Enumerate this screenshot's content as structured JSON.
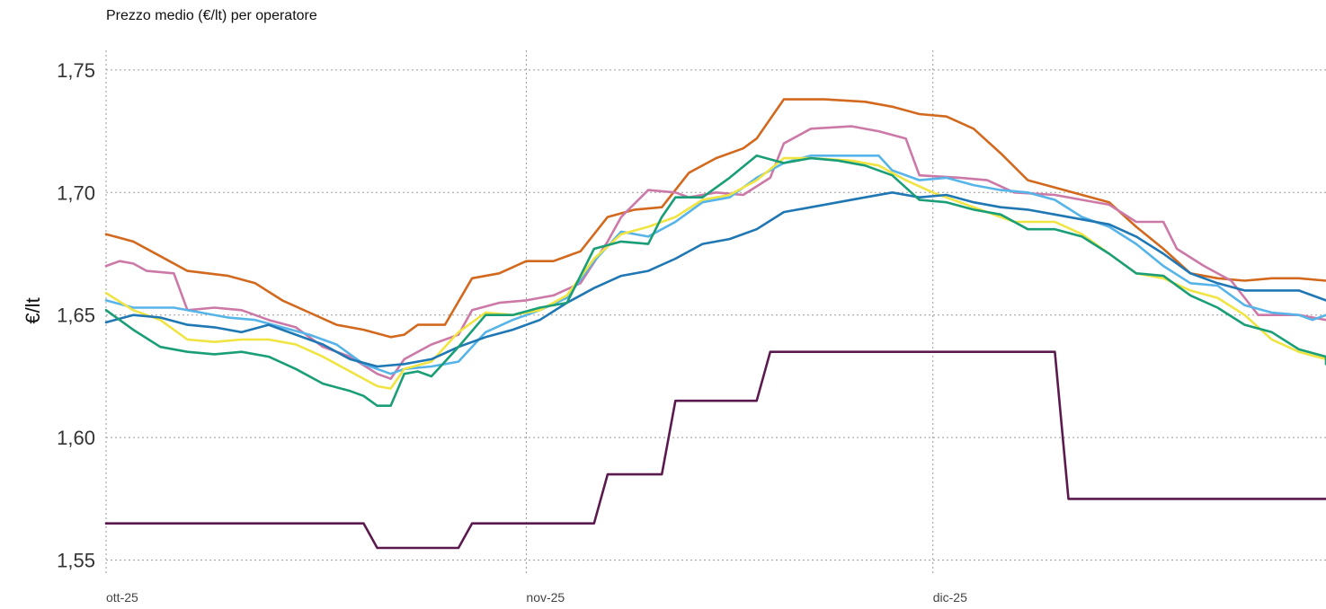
{
  "chart_data": {
    "type": "line",
    "title": "Prezzo medio (€/lt) per operatore",
    "xlabel": "",
    "ylabel": "€/lt",
    "x_ticks": [
      {
        "label": "ott-25",
        "day": 0
      },
      {
        "label": "nov-25",
        "day": 31
      },
      {
        "label": "dic-25",
        "day": 61
      }
    ],
    "xlim": [
      0,
      90
    ],
    "ylim": [
      1.544,
      1.758
    ],
    "y_ticks": [
      {
        "label": "1,55",
        "value": 1.55
      },
      {
        "label": "1,60",
        "value": 1.6
      },
      {
        "label": "1,65",
        "value": 1.65
      },
      {
        "label": "1,70",
        "value": 1.7
      },
      {
        "label": "1,75",
        "value": 1.75
      }
    ],
    "grid": true,
    "legend": "none",
    "series": [
      {
        "color": "#d2691e",
        "points": [
          [
            0,
            1.683
          ],
          [
            2,
            1.68
          ],
          [
            4,
            1.674
          ],
          [
            6,
            1.668
          ],
          [
            9,
            1.666
          ],
          [
            11,
            1.663
          ],
          [
            13,
            1.656
          ],
          [
            15,
            1.651
          ],
          [
            17,
            1.646
          ],
          [
            19,
            1.644
          ],
          [
            21,
            1.641
          ],
          [
            22,
            1.642
          ],
          [
            23,
            1.646
          ],
          [
            25,
            1.646
          ],
          [
            27,
            1.665
          ],
          [
            29,
            1.667
          ],
          [
            31,
            1.672
          ],
          [
            33,
            1.672
          ],
          [
            35,
            1.676
          ],
          [
            37,
            1.69
          ],
          [
            39,
            1.693
          ],
          [
            41,
            1.694
          ],
          [
            43,
            1.708
          ],
          [
            45,
            1.714
          ],
          [
            47,
            1.718
          ],
          [
            48,
            1.722
          ],
          [
            50,
            1.738
          ],
          [
            53,
            1.738
          ],
          [
            56,
            1.737
          ],
          [
            58,
            1.735
          ],
          [
            60,
            1.732
          ],
          [
            62,
            1.731
          ],
          [
            64,
            1.726
          ],
          [
            66,
            1.716
          ],
          [
            68,
            1.705
          ],
          [
            70,
            1.702
          ],
          [
            72,
            1.699
          ],
          [
            74,
            1.696
          ],
          [
            76,
            1.686
          ],
          [
            78,
            1.677
          ],
          [
            80,
            1.667
          ],
          [
            82,
            1.665
          ],
          [
            84,
            1.664
          ],
          [
            86,
            1.665
          ],
          [
            88,
            1.665
          ],
          [
            90,
            1.664
          ]
        ]
      },
      {
        "color": "#cc79a7",
        "points": [
          [
            0,
            1.67
          ],
          [
            1,
            1.672
          ],
          [
            2,
            1.671
          ],
          [
            3,
            1.668
          ],
          [
            5,
            1.667
          ],
          [
            6,
            1.652
          ],
          [
            8,
            1.653
          ],
          [
            10,
            1.652
          ],
          [
            12,
            1.648
          ],
          [
            14,
            1.645
          ],
          [
            16,
            1.637
          ],
          [
            18,
            1.633
          ],
          [
            20,
            1.626
          ],
          [
            21,
            1.624
          ],
          [
            22,
            1.632
          ],
          [
            24,
            1.638
          ],
          [
            26,
            1.642
          ],
          [
            27,
            1.652
          ],
          [
            29,
            1.655
          ],
          [
            31,
            1.656
          ],
          [
            33,
            1.658
          ],
          [
            35,
            1.663
          ],
          [
            37,
            1.68
          ],
          [
            38,
            1.69
          ],
          [
            40,
            1.701
          ],
          [
            42,
            1.7
          ],
          [
            43,
            1.698
          ],
          [
            45,
            1.7
          ],
          [
            47,
            1.699
          ],
          [
            49,
            1.706
          ],
          [
            50,
            1.72
          ],
          [
            52,
            1.726
          ],
          [
            55,
            1.727
          ],
          [
            57,
            1.725
          ],
          [
            59,
            1.722
          ],
          [
            60,
            1.707
          ],
          [
            63,
            1.706
          ],
          [
            65,
            1.705
          ],
          [
            67,
            1.7
          ],
          [
            70,
            1.699
          ],
          [
            72,
            1.697
          ],
          [
            74,
            1.695
          ],
          [
            76,
            1.688
          ],
          [
            78,
            1.688
          ],
          [
            79,
            1.677
          ],
          [
            81,
            1.67
          ],
          [
            83,
            1.664
          ],
          [
            85,
            1.65
          ],
          [
            88,
            1.65
          ],
          [
            90,
            1.648
          ]
        ]
      },
      {
        "color": "#56b4e9",
        "points": [
          [
            0,
            1.656
          ],
          [
            2,
            1.653
          ],
          [
            5,
            1.653
          ],
          [
            7,
            1.651
          ],
          [
            9,
            1.649
          ],
          [
            11,
            1.648
          ],
          [
            13,
            1.645
          ],
          [
            15,
            1.642
          ],
          [
            17,
            1.638
          ],
          [
            19,
            1.63
          ],
          [
            21,
            1.626
          ],
          [
            22,
            1.628
          ],
          [
            24,
            1.629
          ],
          [
            26,
            1.631
          ],
          [
            28,
            1.643
          ],
          [
            30,
            1.648
          ],
          [
            32,
            1.652
          ],
          [
            34,
            1.657
          ],
          [
            36,
            1.672
          ],
          [
            38,
            1.684
          ],
          [
            40,
            1.682
          ],
          [
            42,
            1.688
          ],
          [
            44,
            1.696
          ],
          [
            46,
            1.698
          ],
          [
            48,
            1.706
          ],
          [
            50,
            1.712
          ],
          [
            52,
            1.715
          ],
          [
            55,
            1.715
          ],
          [
            57,
            1.715
          ],
          [
            58,
            1.709
          ],
          [
            60,
            1.705
          ],
          [
            62,
            1.706
          ],
          [
            64,
            1.703
          ],
          [
            66,
            1.701
          ],
          [
            68,
            1.7
          ],
          [
            70,
            1.697
          ],
          [
            72,
            1.69
          ],
          [
            74,
            1.686
          ],
          [
            76,
            1.679
          ],
          [
            78,
            1.67
          ],
          [
            80,
            1.663
          ],
          [
            82,
            1.662
          ],
          [
            84,
            1.654
          ],
          [
            86,
            1.651
          ],
          [
            88,
            1.65
          ],
          [
            89,
            1.648
          ],
          [
            90,
            1.65
          ]
        ]
      },
      {
        "color": "#f0e442",
        "points": [
          [
            0,
            1.659
          ],
          [
            2,
            1.652
          ],
          [
            4,
            1.648
          ],
          [
            6,
            1.64
          ],
          [
            8,
            1.639
          ],
          [
            10,
            1.64
          ],
          [
            12,
            1.64
          ],
          [
            14,
            1.638
          ],
          [
            16,
            1.633
          ],
          [
            18,
            1.627
          ],
          [
            20,
            1.621
          ],
          [
            21,
            1.62
          ],
          [
            22,
            1.628
          ],
          [
            24,
            1.631
          ],
          [
            26,
            1.643
          ],
          [
            28,
            1.651
          ],
          [
            30,
            1.65
          ],
          [
            32,
            1.652
          ],
          [
            34,
            1.658
          ],
          [
            36,
            1.673
          ],
          [
            38,
            1.683
          ],
          [
            40,
            1.686
          ],
          [
            42,
            1.69
          ],
          [
            44,
            1.697
          ],
          [
            46,
            1.699
          ],
          [
            48,
            1.705
          ],
          [
            50,
            1.714
          ],
          [
            52,
            1.714
          ],
          [
            55,
            1.713
          ],
          [
            57,
            1.711
          ],
          [
            59,
            1.705
          ],
          [
            61,
            1.7
          ],
          [
            63,
            1.696
          ],
          [
            65,
            1.692
          ],
          [
            67,
            1.688
          ],
          [
            70,
            1.688
          ],
          [
            72,
            1.683
          ],
          [
            74,
            1.675
          ],
          [
            76,
            1.667
          ],
          [
            78,
            1.665
          ],
          [
            80,
            1.66
          ],
          [
            82,
            1.657
          ],
          [
            84,
            1.65
          ],
          [
            86,
            1.64
          ],
          [
            88,
            1.635
          ],
          [
            90,
            1.632
          ]
        ]
      },
      {
        "color": "#1f77b4",
        "points": [
          [
            0,
            1.647
          ],
          [
            2,
            1.65
          ],
          [
            4,
            1.649
          ],
          [
            6,
            1.646
          ],
          [
            8,
            1.645
          ],
          [
            10,
            1.643
          ],
          [
            12,
            1.646
          ],
          [
            14,
            1.642
          ],
          [
            16,
            1.638
          ],
          [
            18,
            1.632
          ],
          [
            20,
            1.629
          ],
          [
            22,
            1.63
          ],
          [
            24,
            1.632
          ],
          [
            26,
            1.637
          ],
          [
            28,
            1.641
          ],
          [
            30,
            1.644
          ],
          [
            32,
            1.648
          ],
          [
            34,
            1.655
          ],
          [
            36,
            1.661
          ],
          [
            38,
            1.666
          ],
          [
            40,
            1.668
          ],
          [
            42,
            1.673
          ],
          [
            44,
            1.679
          ],
          [
            46,
            1.681
          ],
          [
            48,
            1.685
          ],
          [
            50,
            1.692
          ],
          [
            52,
            1.694
          ],
          [
            54,
            1.696
          ],
          [
            56,
            1.698
          ],
          [
            58,
            1.7
          ],
          [
            60,
            1.698
          ],
          [
            62,
            1.699
          ],
          [
            64,
            1.696
          ],
          [
            66,
            1.694
          ],
          [
            68,
            1.693
          ],
          [
            70,
            1.691
          ],
          [
            72,
            1.689
          ],
          [
            74,
            1.687
          ],
          [
            76,
            1.682
          ],
          [
            78,
            1.675
          ],
          [
            80,
            1.667
          ],
          [
            82,
            1.663
          ],
          [
            84,
            1.66
          ],
          [
            86,
            1.66
          ],
          [
            88,
            1.66
          ],
          [
            89,
            1.658
          ],
          [
            90,
            1.656
          ]
        ]
      },
      {
        "color": "#1a9e77",
        "points": [
          [
            0,
            1.652
          ],
          [
            1,
            1.648
          ],
          [
            2,
            1.644
          ],
          [
            4,
            1.637
          ],
          [
            6,
            1.635
          ],
          [
            8,
            1.634
          ],
          [
            10,
            1.635
          ],
          [
            12,
            1.633
          ],
          [
            14,
            1.628
          ],
          [
            16,
            1.622
          ],
          [
            18,
            1.619
          ],
          [
            19,
            1.617
          ],
          [
            20,
            1.613
          ],
          [
            21,
            1.613
          ],
          [
            22,
            1.626
          ],
          [
            23,
            1.627
          ],
          [
            24,
            1.625
          ],
          [
            26,
            1.637
          ],
          [
            28,
            1.65
          ],
          [
            30,
            1.65
          ],
          [
            32,
            1.653
          ],
          [
            34,
            1.655
          ],
          [
            36,
            1.677
          ],
          [
            38,
            1.68
          ],
          [
            40,
            1.679
          ],
          [
            41,
            1.69
          ],
          [
            42,
            1.698
          ],
          [
            44,
            1.698
          ],
          [
            46,
            1.706
          ],
          [
            48,
            1.715
          ],
          [
            50,
            1.712
          ],
          [
            52,
            1.714
          ],
          [
            54,
            1.713
          ],
          [
            56,
            1.711
          ],
          [
            58,
            1.707
          ],
          [
            60,
            1.697
          ],
          [
            62,
            1.696
          ],
          [
            64,
            1.693
          ],
          [
            66,
            1.691
          ],
          [
            68,
            1.685
          ],
          [
            70,
            1.685
          ],
          [
            72,
            1.682
          ],
          [
            74,
            1.675
          ],
          [
            76,
            1.667
          ],
          [
            78,
            1.666
          ],
          [
            80,
            1.658
          ],
          [
            82,
            1.653
          ],
          [
            84,
            1.646
          ],
          [
            86,
            1.643
          ],
          [
            88,
            1.636
          ],
          [
            90,
            1.633
          ],
          [
            90,
            1.63
          ]
        ]
      },
      {
        "color": "#5b1a4e",
        "points": [
          [
            0,
            1.565
          ],
          [
            19,
            1.565
          ],
          [
            20,
            1.555
          ],
          [
            26,
            1.555
          ],
          [
            27,
            1.565
          ],
          [
            36,
            1.565
          ],
          [
            37,
            1.585
          ],
          [
            41,
            1.585
          ],
          [
            42,
            1.615
          ],
          [
            48,
            1.615
          ],
          [
            49,
            1.635
          ],
          [
            70,
            1.635
          ],
          [
            71,
            1.575
          ],
          [
            90,
            1.575
          ]
        ]
      }
    ]
  }
}
